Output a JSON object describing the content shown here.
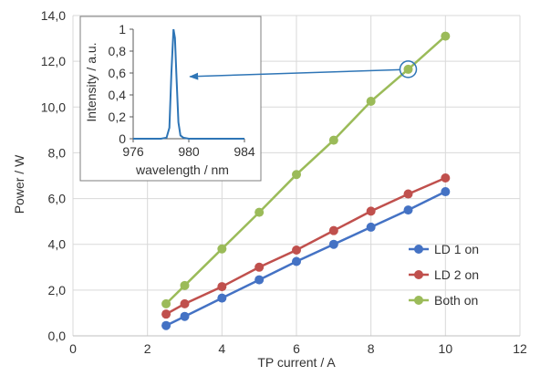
{
  "chart_data": [
    {
      "type": "line",
      "xlabel": "TP current / A",
      "ylabel": "Power / W",
      "xlim": [
        0,
        12
      ],
      "ylim": [
        0,
        14
      ],
      "x_ticks": [
        0,
        2,
        4,
        6,
        8,
        10,
        12
      ],
      "y_ticks": [
        "0,0",
        "2,0",
        "4,0",
        "6,0",
        "8,0",
        "10,0",
        "12,0",
        "14,0"
      ],
      "grid": true,
      "legend_position": "bottom-right",
      "series": [
        {
          "name": "LD 1 on",
          "color": "#4472C4",
          "x": [
            2.5,
            3,
            4,
            5,
            6,
            7,
            8,
            9,
            10
          ],
          "y": [
            0.45,
            0.85,
            1.65,
            2.45,
            3.25,
            4.0,
            4.75,
            5.5,
            6.3
          ]
        },
        {
          "name": "LD 2 on",
          "color": "#C0504D",
          "x": [
            2.5,
            3,
            4,
            5,
            6,
            7,
            8,
            9,
            10
          ],
          "y": [
            0.95,
            1.4,
            2.15,
            3.0,
            3.75,
            4.6,
            5.45,
            6.2,
            6.9
          ]
        },
        {
          "name": "Both on",
          "color": "#9BBB59",
          "x": [
            2.5,
            3,
            4,
            5,
            6,
            7,
            8,
            9,
            10
          ],
          "y": [
            1.4,
            2.2,
            3.8,
            5.4,
            7.05,
            8.55,
            10.25,
            11.65,
            13.1
          ]
        }
      ]
    },
    {
      "type": "line",
      "xlabel": "wavelength / nm",
      "ylabel": "Intensity / a.u.",
      "xlim": [
        976,
        984
      ],
      "ylim": [
        0,
        1
      ],
      "x_ticks": [
        "976",
        "980",
        "984"
      ],
      "y_ticks": [
        "0",
        "0,2",
        "0,4",
        "0,6",
        "0,8",
        "1"
      ],
      "grid": false,
      "series": [
        {
          "color": "#2E75B6",
          "x": [
            976,
            977,
            978,
            978.4,
            978.6,
            978.75,
            978.9,
            979.0,
            979.1,
            979.25,
            979.4,
            979.6,
            980,
            981,
            982,
            983,
            984
          ],
          "y": [
            0,
            0,
            0,
            0.01,
            0.1,
            0.6,
            1.0,
            0.92,
            0.6,
            0.15,
            0.03,
            0.01,
            0,
            0,
            0,
            0,
            0
          ]
        }
      ]
    }
  ]
}
